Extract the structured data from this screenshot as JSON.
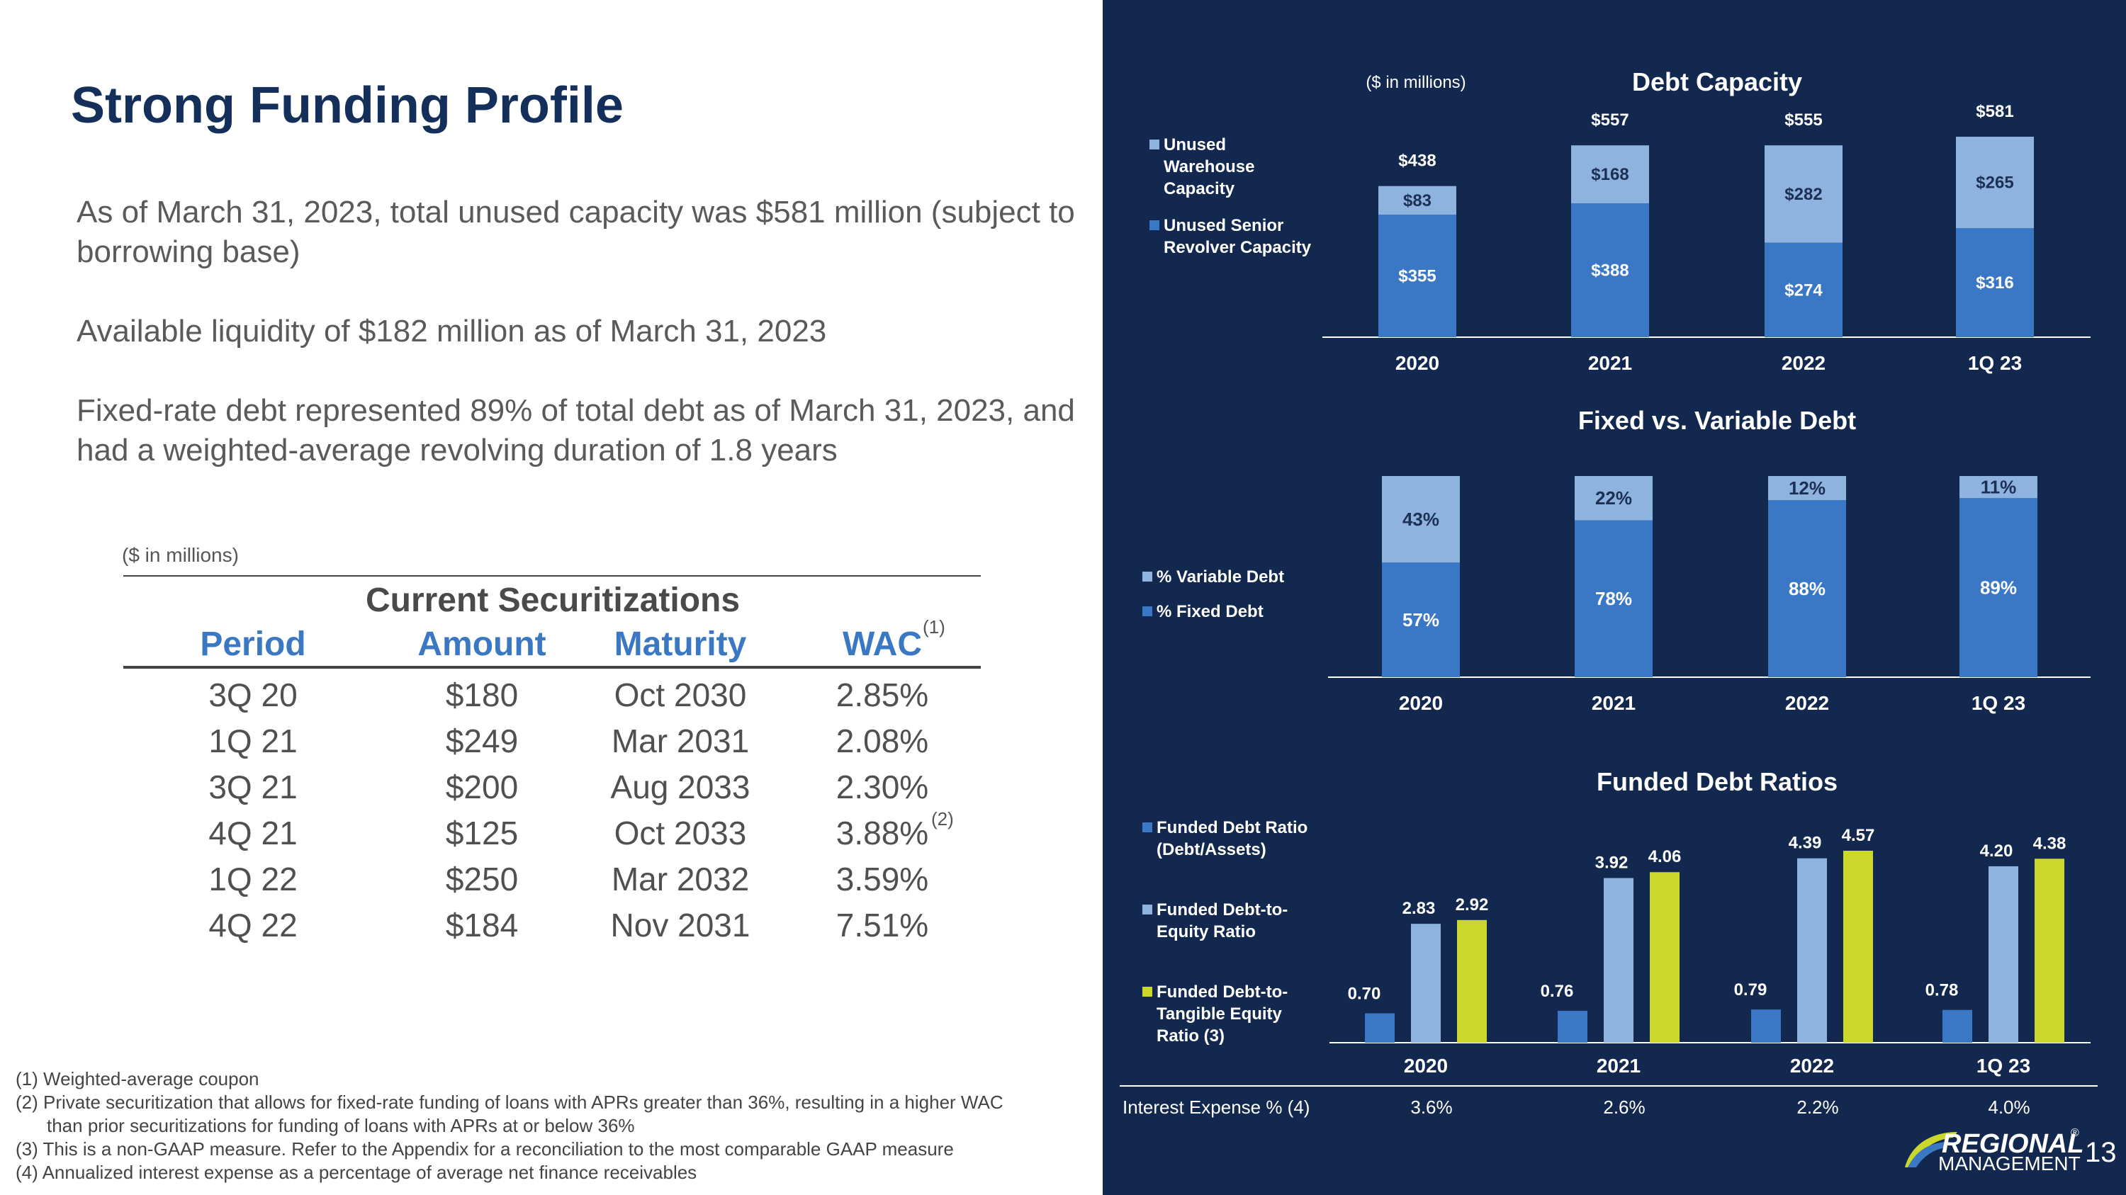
{
  "page": {
    "title": "Strong Funding Profile",
    "bullets": [
      "As of March 31, 2023, total unused capacity was $581 million (subject to borrowing base)",
      "Available liquidity of $182 million as of March 31, 2023",
      "Fixed-rate debt represented 89% of total debt as of March 31, 2023, and had a weighted-average revolving duration of 1.8 years"
    ],
    "page_number": "13",
    "logo": {
      "line1": "REGIONAL",
      "line2": "MANAGEMENT",
      "mark": "®"
    }
  },
  "table": {
    "unit": "($ in millions)",
    "title": "Current Securitizations",
    "headers": [
      "Period",
      "Amount",
      "Maturity",
      "WAC"
    ],
    "wac_note": "(1)",
    "rows": [
      {
        "period": "3Q 20",
        "amount": "$180",
        "maturity": "Oct 2030",
        "wac": "2.85%",
        "note": ""
      },
      {
        "period": "1Q 21",
        "amount": "$249",
        "maturity": "Mar 2031",
        "wac": "2.08%",
        "note": ""
      },
      {
        "period": "3Q 21",
        "amount": "$200",
        "maturity": "Aug 2033",
        "wac": "2.30%",
        "note": ""
      },
      {
        "period": "4Q 21",
        "amount": "$125",
        "maturity": "Oct 2033",
        "wac": "3.88%",
        "note": "(2)"
      },
      {
        "period": "1Q 22",
        "amount": "$250",
        "maturity": "Mar 2032",
        "wac": "3.59%",
        "note": ""
      },
      {
        "period": "4Q 22",
        "amount": "$184",
        "maturity": "Nov 2031",
        "wac": "7.51%",
        "note": ""
      }
    ]
  },
  "footnotes": [
    "(1) Weighted-average coupon",
    "(2) Private securitization that allows for fixed-rate funding of loans with APRs greater than 36%, resulting in a higher WAC",
    "than prior securitizations for funding of loans with APRs at or below 36%",
    "(3) This is a non-GAAP measure. Refer to the Appendix for a reconciliation to the most comparable GAAP measure",
    "(4) Annualized interest expense as a percentage of average net finance receivables"
  ],
  "colors": {
    "background_dark": "#13284f",
    "title_blue": "#14305a",
    "accent_blue": "#3b78c3",
    "bar_dark": "#3a78c6",
    "bar_light": "#8fb3df",
    "bar_lime": "#cbd72a",
    "white": "#ffffff"
  },
  "interest_expense": {
    "label": "Interest Expense % (4)",
    "values": [
      "3.6%",
      "2.6%",
      "2.2%",
      "4.0%"
    ]
  },
  "chart_data": [
    {
      "type": "bar",
      "stacked": true,
      "title": "Debt Capacity",
      "unit_note": "($ in millions)",
      "categories": [
        "2020",
        "2021",
        "2022",
        "1Q 23"
      ],
      "totals": [
        438,
        557,
        555,
        581
      ],
      "total_labels": [
        "$438",
        "$557",
        "$555",
        "$581"
      ],
      "series": [
        {
          "name": "Unused Senior Revolver Capacity",
          "values": [
            355,
            388,
            274,
            316
          ],
          "labels": [
            "$355",
            "$388",
            "$274",
            "$316"
          ]
        },
        {
          "name": "Unused Warehouse Capacity",
          "values": [
            83,
            168,
            282,
            265
          ],
          "labels": [
            "$83",
            "$168",
            "$282",
            "$265"
          ]
        }
      ],
      "legend": [
        "Unused Warehouse Capacity",
        "Unused Senior Revolver Capacity"
      ]
    },
    {
      "type": "bar",
      "stacked": true,
      "title": "Fixed vs. Variable Debt",
      "categories": [
        "2020",
        "2021",
        "2022",
        "1Q 23"
      ],
      "series": [
        {
          "name": "% Fixed Debt",
          "values": [
            57,
            78,
            88,
            89
          ],
          "labels": [
            "57%",
            "78%",
            "88%",
            "89%"
          ]
        },
        {
          "name": "% Variable Debt",
          "values": [
            43,
            22,
            12,
            11
          ],
          "labels": [
            "43%",
            "22%",
            "12%",
            "11%"
          ]
        }
      ],
      "legend": [
        "% Variable Debt",
        "% Fixed Debt"
      ]
    },
    {
      "type": "bar",
      "stacked": false,
      "title": "Funded Debt Ratios",
      "categories": [
        "2020",
        "2021",
        "2022",
        "1Q 23"
      ],
      "series": [
        {
          "name": "Funded Debt Ratio (Debt/Assets)",
          "values": [
            0.7,
            0.76,
            0.79,
            0.78
          ],
          "labels": [
            "0.70",
            "0.76",
            "0.79",
            "0.78"
          ]
        },
        {
          "name": "Funded Debt-to-Equity Ratio",
          "values": [
            2.83,
            3.92,
            4.39,
            4.2
          ],
          "labels": [
            "2.83",
            "3.92",
            "4.39",
            "4.20"
          ]
        },
        {
          "name": "Funded Debt-to-Tangible Equity Ratio (3)",
          "values": [
            2.92,
            4.06,
            4.57,
            4.38
          ],
          "labels": [
            "2.92",
            "4.06",
            "4.57",
            "4.38"
          ]
        }
      ],
      "legend": [
        "Funded Debt Ratio (Debt/Assets)",
        "Funded Debt-to-Equity Ratio",
        "Funded Debt-to-Tangible Equity Ratio (3)"
      ]
    }
  ]
}
